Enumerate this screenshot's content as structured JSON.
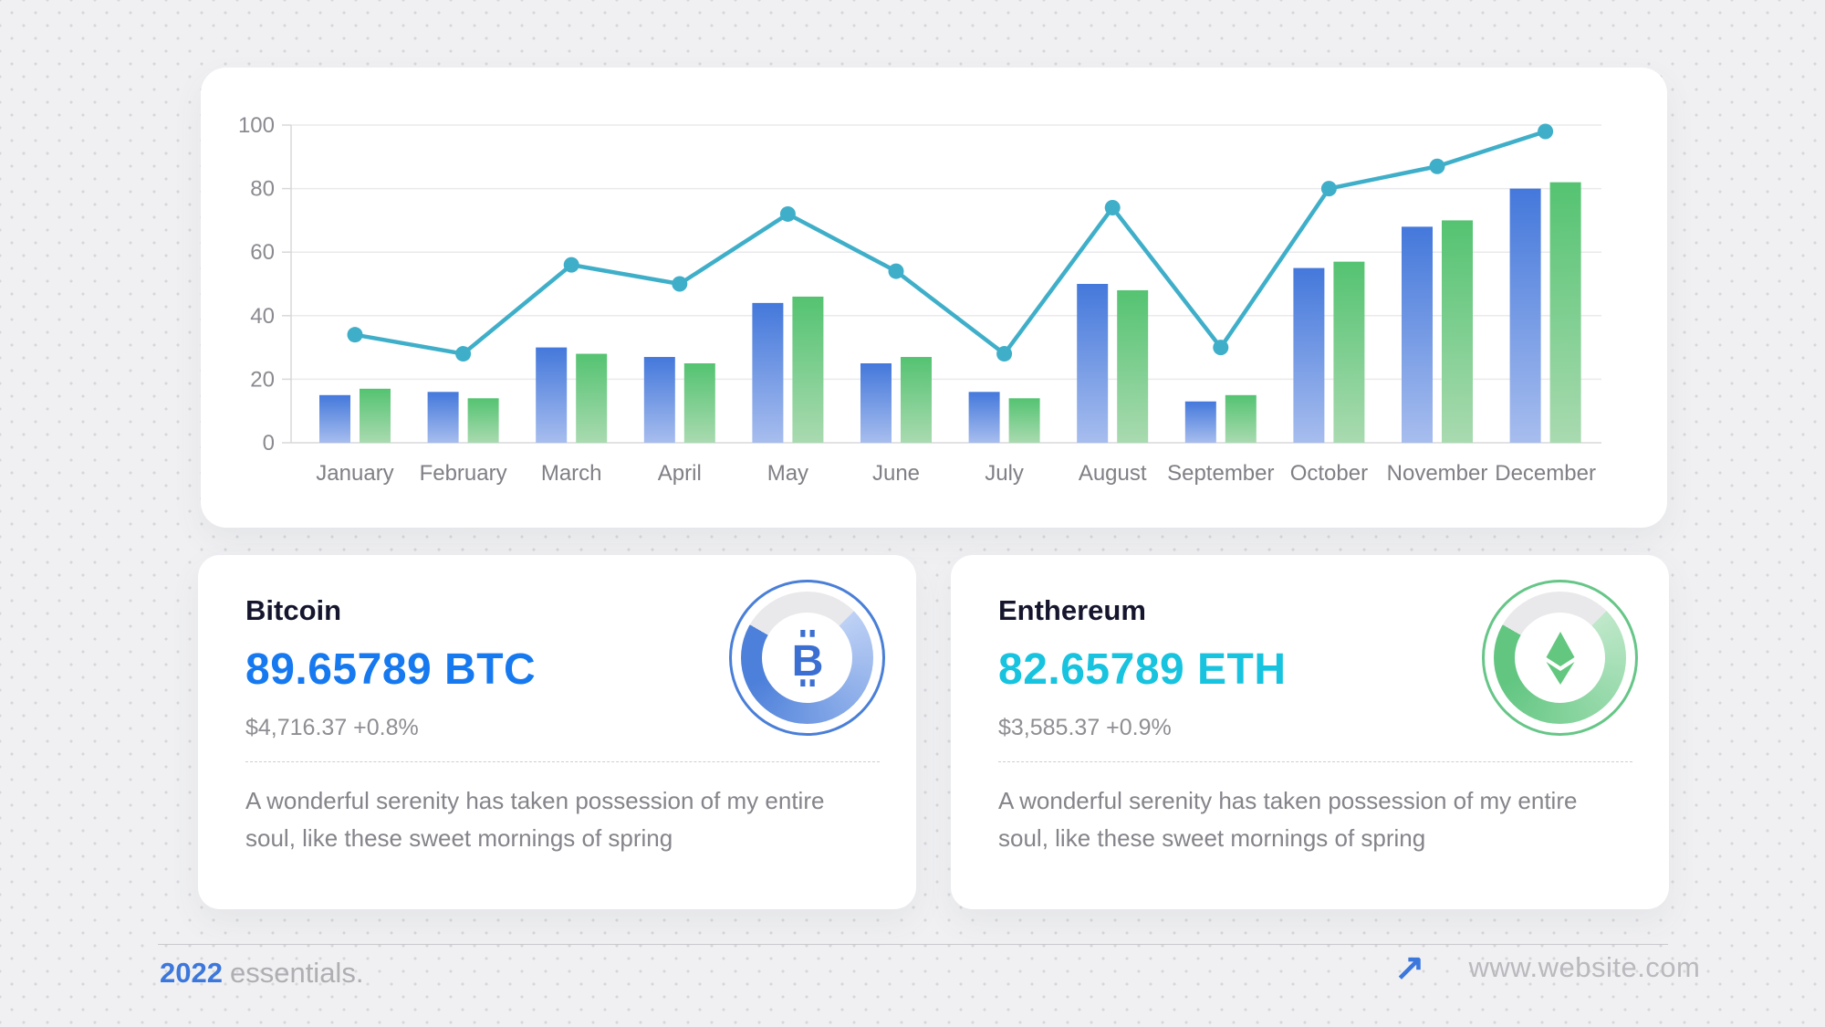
{
  "chart_data": {
    "type": "bar",
    "subtype": "grouped-bars-with-line-overlay",
    "categories": [
      "January",
      "February",
      "March",
      "April",
      "May",
      "June",
      "July",
      "August",
      "September",
      "October",
      "November",
      "December"
    ],
    "series": [
      {
        "name": "blue-bars",
        "type": "bar",
        "color_top": "#4478db",
        "color_bottom": "#a7bdee",
        "values": [
          15,
          16,
          30,
          27,
          44,
          25,
          16,
          50,
          13,
          55,
          68,
          80
        ]
      },
      {
        "name": "green-bars",
        "type": "bar",
        "color_top": "#54c371",
        "color_bottom": "#a9dab0",
        "values": [
          17,
          14,
          28,
          25,
          46,
          27,
          14,
          48,
          15,
          57,
          70,
          82
        ]
      },
      {
        "name": "teal-line",
        "type": "line",
        "color": "#3fafc9",
        "values": [
          34,
          28,
          56,
          50,
          72,
          54,
          28,
          74,
          30,
          80,
          87,
          98
        ]
      }
    ],
    "title": "",
    "xlabel": "",
    "ylabel": "",
    "ylim": [
      0,
      100
    ],
    "yticks": [
      0,
      20,
      40,
      60,
      80,
      100
    ],
    "grid": true,
    "legend": "none",
    "tick_color": "#8a8a90",
    "grid_color": "#eaeaec",
    "axis_color": "#d8d8db"
  },
  "cards": {
    "bitcoin": {
      "title": "Bitcoin",
      "value": "89.65789 BTC",
      "value_color": "#1679f0",
      "price": "$4,716.37 +0.8%",
      "description": "A wonderful serenity has taken possession of my entire soul, like these sweet mornings of spring",
      "donut": {
        "icon": "bitcoin-symbol",
        "progress_deg": 255,
        "ring_color": "#4a7fd8",
        "arc_color": "#4d80da",
        "arc_color_light": "#bed1f5",
        "track_color": "#e9e9eb",
        "icon_color": "#3c6fd2"
      }
    },
    "ethereum": {
      "title": "Enthereum",
      "value": "82.65789 ETH",
      "value_color": "#17c3de",
      "price": "$3,585.37 +0.9%",
      "description": "A wonderful serenity has taken possession of my entire soul, like these sweet mornings of spring",
      "donut": {
        "icon": "ethereum-symbol",
        "progress_deg": 255,
        "ring_color": "#66c687",
        "arc_color": "#62c681",
        "arc_color_light": "#bfe8ca",
        "track_color": "#e9e9eb",
        "icon_color": "#63c77f"
      }
    }
  },
  "footer": {
    "year": "2022",
    "brand": "essentials.",
    "arrow_icon": "↗",
    "website": "www.website.com"
  }
}
